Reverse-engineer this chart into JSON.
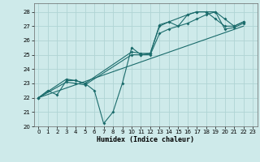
{
  "xlabel": "Humidex (Indice chaleur)",
  "bg_color": "#ceeaea",
  "grid_color": "#b0d4d4",
  "line_color": "#1a6b6b",
  "xlim": [
    -0.5,
    23.5
  ],
  "ylim": [
    20,
    28.6
  ],
  "xticks": [
    0,
    1,
    2,
    3,
    4,
    5,
    6,
    7,
    8,
    9,
    10,
    11,
    12,
    13,
    14,
    15,
    16,
    17,
    18,
    19,
    20,
    21,
    22,
    23
  ],
  "yticks": [
    20,
    21,
    22,
    23,
    24,
    25,
    26,
    27,
    28
  ],
  "line1_x": [
    0,
    1,
    2,
    3,
    4,
    5,
    6,
    7,
    8,
    9,
    10,
    11,
    12,
    13,
    14,
    15,
    16,
    17,
    18,
    19,
    20,
    21,
    22
  ],
  "line1_y": [
    22,
    22.5,
    22.2,
    23.2,
    23.2,
    23.0,
    22.5,
    20.2,
    21.0,
    23.0,
    25.5,
    25.0,
    25.1,
    27.0,
    27.3,
    27.0,
    27.8,
    28.0,
    28.0,
    27.5,
    27.0,
    27.0,
    27.3
  ],
  "line2_x": [
    0,
    3,
    4,
    5,
    10,
    11,
    12,
    13,
    14,
    16,
    17,
    18,
    19,
    20,
    21,
    22
  ],
  "line2_y": [
    22,
    23.3,
    23.2,
    23.0,
    25.2,
    25.1,
    25.1,
    27.1,
    27.3,
    27.8,
    28.0,
    28.0,
    28.0,
    27.5,
    27.0,
    27.3
  ],
  "line3_x": [
    0,
    3,
    4,
    5,
    10,
    11,
    12,
    13,
    14,
    16,
    17,
    18,
    19,
    20,
    21,
    22
  ],
  "line3_y": [
    22,
    23.1,
    23.0,
    22.9,
    25.0,
    25.0,
    25.0,
    26.5,
    26.8,
    27.2,
    27.5,
    27.8,
    28.0,
    26.8,
    26.9,
    27.2
  ],
  "line4_x": [
    0,
    22
  ],
  "line4_y": [
    22,
    27.0
  ]
}
